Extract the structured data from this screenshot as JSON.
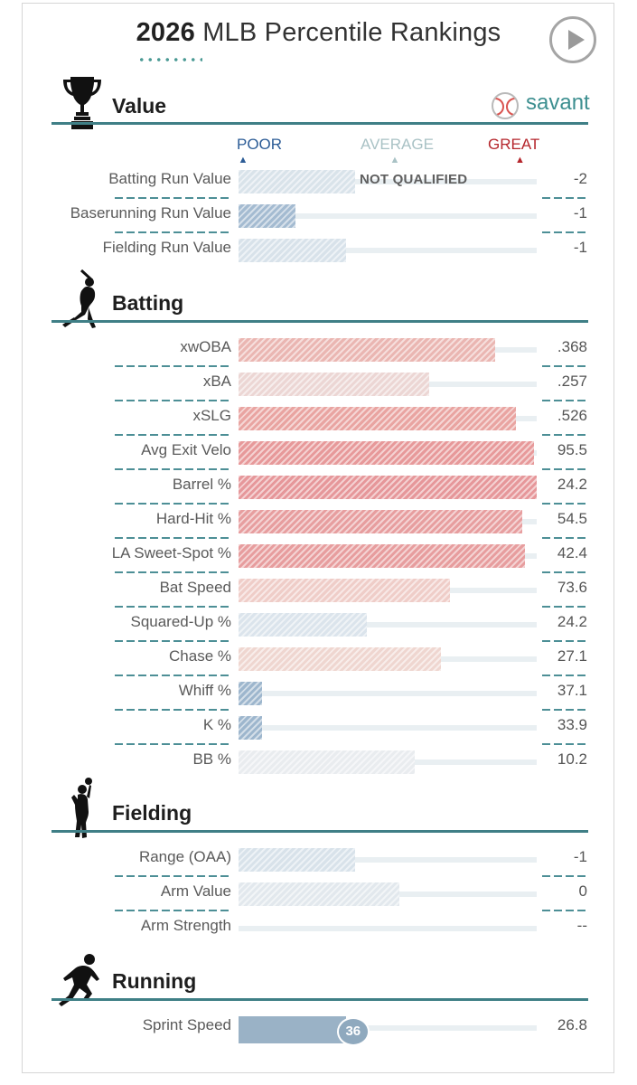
{
  "header": {
    "year": "2026",
    "title_rest": "MLB Percentile Rankings",
    "play_button": "play-icon"
  },
  "brand": {
    "name": "savant"
  },
  "legend": {
    "poor": "POOR",
    "average": "AVERAGE",
    "great": "GREAT",
    "colors": {
      "poor": "#2c5c96",
      "average": "#a9c2c5",
      "great": "#b5262c"
    }
  },
  "sections": {
    "value": {
      "title": "Value",
      "icon": "trophy-icon"
    },
    "batting": {
      "title": "Batting",
      "icon": "batter-silhouette-icon"
    },
    "fielding": {
      "title": "Fielding",
      "icon": "fielder-silhouette-icon"
    },
    "running": {
      "title": "Running",
      "icon": "runner-silhouette-icon"
    }
  },
  "chart_data": {
    "type": "bar",
    "orientation": "horizontal",
    "x_range": [
      0,
      100
    ],
    "value_label": "percentile",
    "groups": [
      {
        "name": "Value",
        "rows": [
          {
            "label": "Batting Run Value",
            "percentile": 39,
            "value": "-2",
            "status": "NOT QUALIFIED",
            "color": "#d9e3ea"
          },
          {
            "label": "Baserunning Run Value",
            "percentile": 19,
            "value": "-1",
            "color": "#a4bbd1"
          },
          {
            "label": "Fielding Run Value",
            "percentile": 36,
            "value": "-1",
            "color": "#d8e2ea"
          }
        ]
      },
      {
        "name": "Batting",
        "rows": [
          {
            "label": "xwOBA",
            "percentile": 86,
            "value": ".368",
            "color": "#eab6b2"
          },
          {
            "label": "xBA",
            "percentile": 64,
            "value": ".257",
            "color": "#ecd6d4"
          },
          {
            "label": "xSLG",
            "percentile": 93,
            "value": ".526",
            "color": "#e9a4a1"
          },
          {
            "label": "Avg Exit Velo",
            "percentile": 99,
            "value": "95.5",
            "color": "#e7999a"
          },
          {
            "label": "Barrel %",
            "percentile": 100,
            "value": "24.2",
            "color": "#e6979a"
          },
          {
            "label": "Hard-Hit %",
            "percentile": 95,
            "value": "54.5",
            "color": "#e79e9f"
          },
          {
            "label": "LA Sweet-Spot %",
            "percentile": 96,
            "value": "42.4",
            "color": "#e79d9e"
          },
          {
            "label": "Bat Speed",
            "percentile": 71,
            "value": "73.6",
            "color": "#efcdc8"
          },
          {
            "label": "Squared-Up %",
            "percentile": 43,
            "value": "24.2",
            "color": "#dbe4ec"
          },
          {
            "label": "Chase %",
            "percentile": 68,
            "value": "27.1",
            "color": "#efd6d0"
          },
          {
            "label": "Whiff %",
            "percentile": 8,
            "value": "37.1",
            "color": "#9db6cd"
          },
          {
            "label": "K %",
            "percentile": 8,
            "value": "33.9",
            "color": "#9db6cd"
          },
          {
            "label": "BB %",
            "percentile": 59,
            "value": "10.2",
            "color": "#e9ecef"
          }
        ]
      },
      {
        "name": "Fielding",
        "rows": [
          {
            "label": "Range (OAA)",
            "percentile": 39,
            "value": "-1",
            "color": "#d8e2ea"
          },
          {
            "label": "Arm Value",
            "percentile": 54,
            "value": "0",
            "color": "#e2e8ed"
          },
          {
            "label": "Arm Strength",
            "percentile": null,
            "value": "--",
            "color": "#e9eff2"
          }
        ]
      },
      {
        "name": "Running",
        "rows": [
          {
            "label": "Sprint Speed",
            "percentile": 36,
            "value": "26.8",
            "badge": "36",
            "color": "#9ab2c6"
          }
        ]
      }
    ]
  }
}
